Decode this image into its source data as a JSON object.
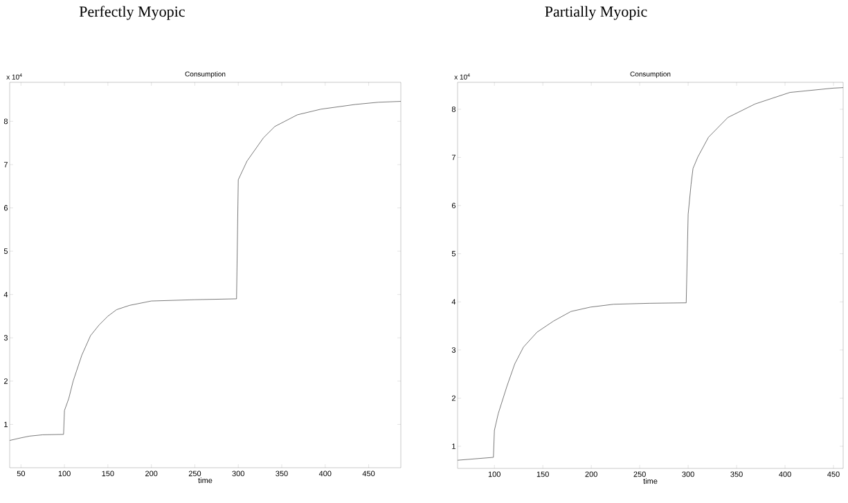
{
  "chart_data": [
    {
      "type": "line",
      "title": "Perfectly Myopic",
      "subtitle": "Consumption",
      "xlabel": "time",
      "annotations": [
        "x 10$^{4}$"
      ],
      "x": [
        37,
        50,
        60,
        75,
        99,
        100,
        105,
        110,
        120,
        130,
        140,
        150,
        160,
        175,
        200,
        250,
        298,
        300,
        310,
        329,
        342,
        368,
        395,
        435,
        461,
        487
      ],
      "series": [
        {
          "color": "#404040",
          "values": [
            0.63,
            0.69,
            0.73,
            0.76,
            0.77,
            1.32,
            1.6,
            2.0,
            2.6,
            3.05,
            3.3,
            3.5,
            3.65,
            3.75,
            3.85,
            3.88,
            3.9,
            6.65,
            7.08,
            7.62,
            7.88,
            8.15,
            8.28,
            8.39,
            8.44,
            8.46
          ]
        }
      ],
      "xlim": [
        37,
        487
      ],
      "ylim": [
        0,
        8.9
      ],
      "xticks": [
        50,
        100,
        150,
        200,
        250,
        300,
        350,
        400,
        450
      ],
      "yticks": [
        1,
        2,
        3,
        4,
        5,
        6,
        7,
        8
      ]
    },
    {
      "type": "line",
      "title": "Partially Myopic",
      "subtitle": "Consumption",
      "xlabel": "time",
      "annotations": [
        "x 10$^{4}$"
      ],
      "x": [
        62,
        99,
        100,
        104,
        113,
        121,
        130,
        144,
        161,
        179,
        199,
        223,
        260,
        298,
        300,
        303,
        305,
        310,
        321,
        341,
        369,
        405,
        450,
        460
      ],
      "series": [
        {
          "color": "#404040",
          "values": [
            0.71,
            0.77,
            1.33,
            1.68,
            2.25,
            2.71,
            3.06,
            3.37,
            3.6,
            3.8,
            3.89,
            3.95,
            3.97,
            3.98,
            5.82,
            6.44,
            6.77,
            7.01,
            7.42,
            7.83,
            8.11,
            8.35,
            8.44,
            8.45
          ]
        }
      ],
      "xlim": [
        62,
        460
      ],
      "ylim": [
        0.54,
        8.56
      ],
      "xticks": [
        100,
        150,
        200,
        250,
        300,
        350,
        400,
        450
      ],
      "yticks": [
        1,
        2,
        3,
        4,
        5,
        6,
        7,
        8
      ]
    }
  ]
}
